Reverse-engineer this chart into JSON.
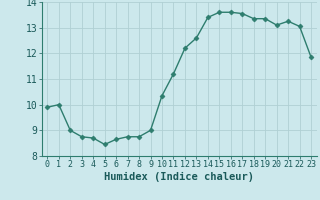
{
  "x": [
    0,
    1,
    2,
    3,
    4,
    5,
    6,
    7,
    8,
    9,
    10,
    11,
    12,
    13,
    14,
    15,
    16,
    17,
    18,
    19,
    20,
    21,
    22,
    23
  ],
  "y": [
    9.9,
    10.0,
    9.0,
    8.75,
    8.7,
    8.45,
    8.65,
    8.75,
    8.75,
    9.0,
    10.35,
    11.2,
    12.2,
    12.6,
    13.4,
    13.6,
    13.6,
    13.55,
    13.35,
    13.35,
    13.1,
    13.25,
    13.05,
    11.85
  ],
  "line_color": "#2e7d6e",
  "marker": "D",
  "markersize": 2.5,
  "linewidth": 1.0,
  "bg_color": "#cce8ec",
  "grid_color": "#b0d0d4",
  "xlabel": "Humidex (Indice chaleur)",
  "xlabel_fontsize": 7.5,
  "ytick_fontsize": 7,
  "xtick_fontsize": 6,
  "ylim": [
    8,
    14
  ],
  "xlim": [
    -0.5,
    23.5
  ],
  "yticks": [
    8,
    9,
    10,
    11,
    12,
    13,
    14
  ],
  "xticks": [
    0,
    1,
    2,
    3,
    4,
    5,
    6,
    7,
    8,
    9,
    10,
    11,
    12,
    13,
    14,
    15,
    16,
    17,
    18,
    19,
    20,
    21,
    22,
    23
  ]
}
